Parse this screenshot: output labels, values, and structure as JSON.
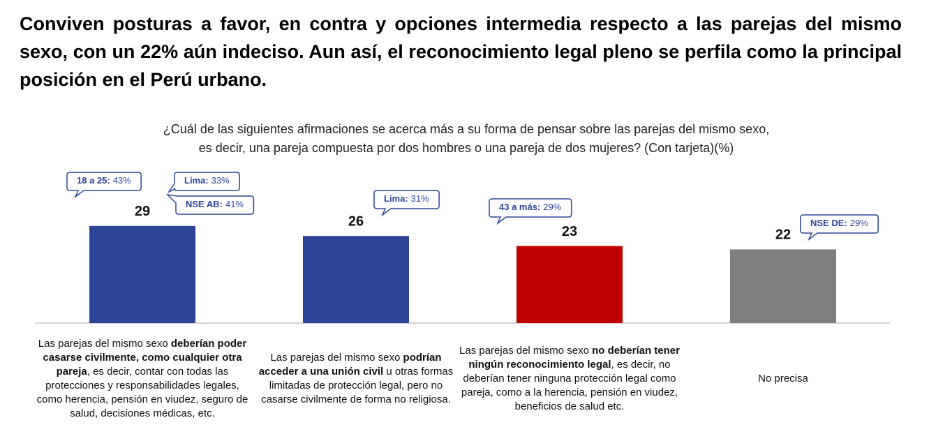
{
  "chart_data": {
    "type": "bar",
    "title": "Conviven posturas a favor, en contra y opciones intermedia respecto a las parejas del mismo sexo, con un 22% aún indeciso. Aun así, el reconocimiento legal pleno se perfila como la principal posición en el Perú urbano.",
    "subtitle": [
      "¿Cuál de las siguientes afirmaciones se acerca más a su forma de pensar sobre las parejas del mismo sexo,",
      "es decir, una pareja compuesta por dos hombres o una pareja de dos mujeres? (Con tarjeta)(%)"
    ],
    "categories": [
      [
        {
          "text": "Las parejas del mismo sexo ",
          "bold": false
        },
        {
          "text": "deberían poder casarse civilmente, como cualquier otra pareja",
          "bold": true
        },
        {
          "text": ", es decir, contar con todas las protecciones y responsabilidades legales, como herencia, pensión en viudez, seguro de salud, decisiones médicas, etc.",
          "bold": false
        }
      ],
      [
        {
          "text": "Las parejas del mismo sexo ",
          "bold": false
        },
        {
          "text": "podrían acceder a una unión civil",
          "bold": true
        },
        {
          "text": " u otras formas limitadas de protección legal, pero no casarse civilmente de forma no religiosa.",
          "bold": false
        }
      ],
      [
        {
          "text": "Las parejas del mismo sexo ",
          "bold": false
        },
        {
          "text": "no deberían tener ningún reconocimiento legal",
          "bold": true
        },
        {
          "text": ", es decir, no deberían tener ninguna protección legal como pareja, como a la herencia, pensión en viudez, beneficios de salud etc.",
          "bold": false
        }
      ],
      [
        {
          "text": "No precisa",
          "bold": false
        }
      ]
    ],
    "values": [
      29,
      26,
      23,
      22
    ],
    "colors": [
      "#2f4599",
      "#2f4599",
      "#c00000",
      "#7f7f7f"
    ],
    "annotations": [
      {
        "category": 0,
        "label": "18 a 25:",
        "text": "43%"
      },
      {
        "category": 0,
        "label": "Lima:",
        "text": "33%"
      },
      {
        "category": 0,
        "label": "NSE AB:",
        "text": "41%"
      },
      {
        "category": 1,
        "label": "Lima:",
        "text": "31%"
      },
      {
        "category": 2,
        "label": "43 a más:",
        "text": "29%"
      },
      {
        "category": 3,
        "label": "NSE DE:",
        "text": "29%"
      }
    ]
  }
}
